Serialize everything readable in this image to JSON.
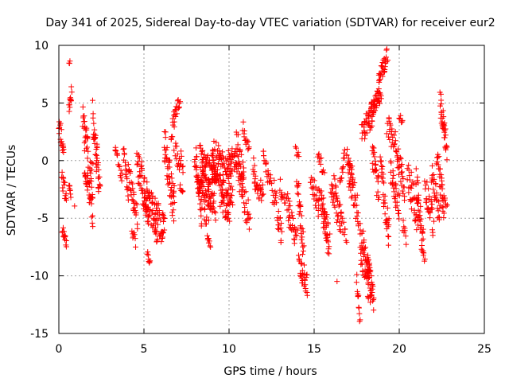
{
  "chart_data": {
    "type": "scatter",
    "title": "Day 341 of 2025, Sidereal Day-to-day VTEC variation (SDTVAR) for receiver eur2",
    "xlabel": "GPS time / hours",
    "ylabel": "SDTVAR / TECUs",
    "xlim": [
      0,
      25
    ],
    "ylim": [
      -15,
      10
    ],
    "xticks": [
      0,
      5,
      10,
      15,
      20,
      25
    ],
    "yticks": [
      -15,
      -10,
      -5,
      0,
      5,
      10
    ],
    "xtick_labels": [
      "0",
      "5",
      "10",
      "15",
      "20",
      "25"
    ],
    "ytick_labels": [
      "-15",
      "-10",
      "-5",
      "0",
      "5",
      "10"
    ],
    "grid": true,
    "marker": "+",
    "series": [
      {
        "name": "SDTVAR",
        "color": "#ff0000",
        "segments": [
          {
            "t0": 0.0,
            "t1": 0.3,
            "y0": 3.3,
            "y1": 0.5,
            "spread": 0.8,
            "n": 18
          },
          {
            "t0": 0.15,
            "t1": 0.45,
            "y0": -1.5,
            "y1": -3.0,
            "spread": 0.8,
            "n": 16
          },
          {
            "t0": 0.2,
            "t1": 0.45,
            "y0": -6.0,
            "y1": -7.2,
            "spread": 0.5,
            "n": 14
          },
          {
            "t0": 0.6,
            "t1": 0.75,
            "y0": 4.5,
            "y1": 6.0,
            "spread": 0.6,
            "n": 12
          },
          {
            "t0": 0.6,
            "t1": 0.7,
            "y0": -2.0,
            "y1": -3.0,
            "spread": 0.5,
            "n": 8
          },
          {
            "t0": 0.6,
            "t1": 0.65,
            "y0": 8.4,
            "y1": 8.6,
            "spread": 0.1,
            "n": 3
          },
          {
            "t0": 0.9,
            "t1": 0.95,
            "y0": -4.0,
            "y1": -4.0,
            "spread": 0.1,
            "n": 1
          },
          {
            "t0": 1.4,
            "t1": 1.7,
            "y0": 3.8,
            "y1": 1.0,
            "spread": 1.2,
            "n": 20
          },
          {
            "t0": 1.5,
            "t1": 2.0,
            "y0": 0.0,
            "y1": -2.0,
            "spread": 2.0,
            "n": 40
          },
          {
            "t0": 1.8,
            "t1": 2.0,
            "y0": -3.0,
            "y1": -5.5,
            "spread": 0.8,
            "n": 10
          },
          {
            "t0": 2.0,
            "t1": 2.4,
            "y0": 4.0,
            "y1": -2.5,
            "spread": 1.5,
            "n": 40
          },
          {
            "t0": 3.3,
            "t1": 3.7,
            "y0": 1.2,
            "y1": -1.5,
            "spread": 0.6,
            "n": 16
          },
          {
            "t0": 3.8,
            "t1": 4.1,
            "y0": 1.0,
            "y1": -3.0,
            "spread": 0.8,
            "n": 18
          },
          {
            "t0": 4.1,
            "t1": 4.6,
            "y0": -1.0,
            "y1": -5.0,
            "spread": 1.0,
            "n": 30
          },
          {
            "t0": 4.3,
            "t1": 4.5,
            "y0": -6.5,
            "y1": -7.0,
            "spread": 0.6,
            "n": 8
          },
          {
            "t0": 4.6,
            "t1": 5.3,
            "y0": 0.2,
            "y1": -4.5,
            "spread": 1.5,
            "n": 50
          },
          {
            "t0": 5.0,
            "t1": 6.2,
            "y0": -3.0,
            "y1": -6.0,
            "spread": 1.5,
            "n": 80
          },
          {
            "t0": 5.2,
            "t1": 5.35,
            "y0": -8.0,
            "y1": -9.0,
            "spread": 0.3,
            "n": 8
          },
          {
            "t0": 5.6,
            "t1": 5.8,
            "y0": -5.5,
            "y1": -7.0,
            "spread": 0.6,
            "n": 8
          },
          {
            "t0": 6.2,
            "t1": 6.8,
            "y0": 1.0,
            "y1": -4.0,
            "spread": 2.0,
            "n": 50
          },
          {
            "t0": 6.6,
            "t1": 7.1,
            "y0": 2.5,
            "y1": 5.2,
            "spread": 0.8,
            "n": 25
          },
          {
            "t0": 6.8,
            "t1": 7.3,
            "y0": 1.0,
            "y1": -0.5,
            "spread": 1.0,
            "n": 20
          },
          {
            "t0": 7.1,
            "t1": 7.3,
            "y0": -2.3,
            "y1": -2.7,
            "spread": 0.3,
            "n": 6
          },
          {
            "t0": 8.0,
            "t1": 8.4,
            "y0": 0.5,
            "y1": -4.5,
            "spread": 1.2,
            "n": 40
          },
          {
            "t0": 8.3,
            "t1": 9.2,
            "y0": -0.5,
            "y1": -3.0,
            "spread": 2.2,
            "n": 120
          },
          {
            "t0": 8.5,
            "t1": 8.9,
            "y0": -4.0,
            "y1": -7.0,
            "spread": 1.0,
            "n": 18
          },
          {
            "t0": 9.0,
            "t1": 10.2,
            "y0": 0.5,
            "y1": -2.5,
            "spread": 1.8,
            "n": 110
          },
          {
            "t0": 9.5,
            "t1": 10.0,
            "y0": -3.0,
            "y1": -5.0,
            "spread": 1.0,
            "n": 25
          },
          {
            "t0": 10.0,
            "t1": 10.6,
            "y0": 1.0,
            "y1": -1.0,
            "spread": 1.0,
            "n": 30
          },
          {
            "t0": 10.4,
            "t1": 10.9,
            "y0": 2.0,
            "y1": -2.0,
            "spread": 1.2,
            "n": 25
          },
          {
            "t0": 10.8,
            "t1": 11.2,
            "y0": 3.0,
            "y1": 1.0,
            "spread": 0.6,
            "n": 14
          },
          {
            "t0": 10.6,
            "t1": 11.2,
            "y0": -2.0,
            "y1": -5.0,
            "spread": 1.2,
            "n": 30
          },
          {
            "t0": 11.4,
            "t1": 12.0,
            "y0": -0.5,
            "y1": -3.5,
            "spread": 1.2,
            "n": 30
          },
          {
            "t0": 12.0,
            "t1": 12.5,
            "y0": 0.5,
            "y1": -2.0,
            "spread": 1.0,
            "n": 22
          },
          {
            "t0": 12.6,
            "t1": 13.1,
            "y0": -2.5,
            "y1": -6.5,
            "spread": 1.2,
            "n": 25
          },
          {
            "t0": 13.0,
            "t1": 13.6,
            "y0": -2.0,
            "y1": -4.5,
            "spread": 1.0,
            "n": 22
          },
          {
            "t0": 13.5,
            "t1": 14.0,
            "y0": -4.5,
            "y1": -7.0,
            "spread": 1.0,
            "n": 22
          },
          {
            "t0": 13.9,
            "t1": 14.1,
            "y0": 1.0,
            "y1": 0.2,
            "spread": 0.4,
            "n": 6
          },
          {
            "t0": 14.0,
            "t1": 14.4,
            "y0": -1.5,
            "y1": -8.0,
            "spread": 1.2,
            "n": 30
          },
          {
            "t0": 14.1,
            "t1": 14.6,
            "y0": -9.0,
            "y1": -11.0,
            "spread": 1.0,
            "n": 30
          },
          {
            "t0": 14.8,
            "t1": 15.3,
            "y0": -2.0,
            "y1": -4.0,
            "spread": 1.2,
            "n": 22
          },
          {
            "t0": 15.2,
            "t1": 15.6,
            "y0": 0.5,
            "y1": -1.0,
            "spread": 0.6,
            "n": 12
          },
          {
            "t0": 15.3,
            "t1": 15.9,
            "y0": -3.0,
            "y1": -7.0,
            "spread": 1.3,
            "n": 35
          },
          {
            "t0": 15.5,
            "t1": 15.8,
            "y0": -4.0,
            "y1": -7.5,
            "spread": 0.8,
            "n": 14
          },
          {
            "t0": 16.0,
            "t1": 16.6,
            "y0": -1.5,
            "y1": -5.5,
            "spread": 1.5,
            "n": 40
          },
          {
            "t0": 16.5,
            "t1": 16.8,
            "y0": -2.0,
            "y1": 0.5,
            "spread": 0.6,
            "n": 14
          },
          {
            "t0": 16.6,
            "t1": 16.9,
            "y0": -5.0,
            "y1": -7.0,
            "spread": 0.6,
            "n": 10
          },
          {
            "t0": 16.9,
            "t1": 17.3,
            "y0": 1.0,
            "y1": -2.0,
            "spread": 1.0,
            "n": 20
          },
          {
            "t0": 17.0,
            "t1": 17.6,
            "y0": -1.0,
            "y1": -5.0,
            "spread": 1.5,
            "n": 30
          },
          {
            "t0": 17.5,
            "t1": 17.7,
            "y0": -10.0,
            "y1": -13.5,
            "spread": 0.8,
            "n": 12
          },
          {
            "t0": 17.7,
            "t1": 18.3,
            "y0": -7.0,
            "y1": -11.0,
            "spread": 2.0,
            "n": 55
          },
          {
            "t0": 18.1,
            "t1": 18.5,
            "y0": -9.0,
            "y1": -12.0,
            "spread": 1.2,
            "n": 30
          },
          {
            "t0": 17.8,
            "t1": 18.5,
            "y0": 2.5,
            "y1": 4.0,
            "spread": 1.0,
            "n": 40
          },
          {
            "t0": 18.3,
            "t1": 18.9,
            "y0": 4.0,
            "y1": 6.0,
            "spread": 0.8,
            "n": 40
          },
          {
            "t0": 18.4,
            "t1": 18.8,
            "y0": 1.0,
            "y1": -3.0,
            "spread": 1.3,
            "n": 25
          },
          {
            "t0": 18.8,
            "t1": 19.3,
            "y0": 7.0,
            "y1": 9.0,
            "spread": 0.8,
            "n": 30
          },
          {
            "t0": 18.9,
            "t1": 19.4,
            "y0": -1.0,
            "y1": -6.0,
            "spread": 1.5,
            "n": 35
          },
          {
            "t0": 19.3,
            "t1": 19.9,
            "y0": 3.0,
            "y1": 1.0,
            "spread": 1.0,
            "n": 30
          },
          {
            "t0": 19.5,
            "t1": 20.0,
            "y0": -1.0,
            "y1": -4.0,
            "spread": 1.2,
            "n": 30
          },
          {
            "t0": 19.9,
            "t1": 20.3,
            "y0": 0.5,
            "y1": -3.0,
            "spread": 1.3,
            "n": 25
          },
          {
            "t0": 20.0,
            "t1": 20.2,
            "y0": 3.8,
            "y1": 3.4,
            "spread": 0.3,
            "n": 6
          },
          {
            "t0": 20.2,
            "t1": 20.4,
            "y0": -5.5,
            "y1": -7.0,
            "spread": 0.6,
            "n": 8
          },
          {
            "t0": 20.5,
            "t1": 21.1,
            "y0": -1.0,
            "y1": -5.0,
            "spread": 1.5,
            "n": 35
          },
          {
            "t0": 21.0,
            "t1": 21.4,
            "y0": -2.0,
            "y1": -7.0,
            "spread": 1.3,
            "n": 30
          },
          {
            "t0": 21.3,
            "t1": 21.5,
            "y0": -7.5,
            "y1": -8.5,
            "spread": 0.5,
            "n": 8
          },
          {
            "t0": 21.5,
            "t1": 22.0,
            "y0": -2.0,
            "y1": -5.5,
            "spread": 1.3,
            "n": 30
          },
          {
            "t0": 21.9,
            "t1": 22.4,
            "y0": -1.0,
            "y1": -5.0,
            "spread": 1.2,
            "n": 28
          },
          {
            "t0": 22.2,
            "t1": 22.6,
            "y0": 0.5,
            "y1": -4.0,
            "spread": 1.2,
            "n": 28
          },
          {
            "t0": 22.4,
            "t1": 22.8,
            "y0": 5.0,
            "y1": 1.0,
            "spread": 1.2,
            "n": 35
          },
          {
            "t0": 22.5,
            "t1": 22.8,
            "y0": -2.5,
            "y1": -4.0,
            "spread": 0.6,
            "n": 10
          },
          {
            "t0": 16.3,
            "t1": 16.4,
            "y0": -10.5,
            "y1": -10.5,
            "spread": 0.1,
            "n": 1
          },
          {
            "t0": 17.6,
            "t1": 17.7,
            "y0": -5.5,
            "y1": -5.5,
            "spread": 0.2,
            "n": 2
          }
        ]
      }
    ]
  }
}
